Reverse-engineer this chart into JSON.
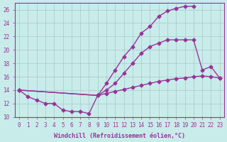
{
  "title": "",
  "xlabel": "Windchill (Refroidissement éolien,°C)",
  "ylabel": "",
  "bg_color": "#c8ecea",
  "line_color": "#993399",
  "grid_color": "#a8c8c8",
  "xlim": [
    -0.5,
    23.5
  ],
  "ylim": [
    10,
    27
  ],
  "yticks": [
    10,
    12,
    14,
    16,
    18,
    20,
    22,
    24,
    26
  ],
  "xticks": [
    0,
    1,
    2,
    3,
    4,
    5,
    6,
    7,
    8,
    9,
    10,
    11,
    12,
    13,
    14,
    15,
    16,
    17,
    18,
    19,
    20,
    21,
    22,
    23
  ],
  "line1_x": [
    0,
    1,
    2,
    3,
    4,
    5,
    6,
    7,
    8,
    9,
    10,
    11,
    12,
    13,
    14,
    15,
    16,
    17,
    18,
    19,
    20
  ],
  "line1_y": [
    14.0,
    13.0,
    12.5,
    12.0,
    12.0,
    11.0,
    10.8,
    10.8,
    10.5,
    13.2,
    15.0,
    17.0,
    19.0,
    20.5,
    22.5,
    23.5,
    25.0,
    25.8,
    26.2,
    26.5,
    26.5
  ],
  "line2_x": [
    0,
    9,
    10,
    11,
    12,
    13,
    14,
    15,
    16,
    17,
    18,
    19,
    20,
    21,
    22,
    23
  ],
  "line2_y": [
    14.0,
    13.2,
    14.0,
    15.0,
    16.5,
    18.0,
    19.5,
    20.5,
    21.0,
    21.5,
    21.5,
    21.5,
    21.5,
    17.0,
    17.5,
    15.8
  ],
  "line3_x": [
    0,
    9,
    10,
    11,
    12,
    13,
    14,
    15,
    16,
    17,
    18,
    19,
    20,
    21,
    22,
    23
  ],
  "line3_y": [
    14.0,
    13.2,
    13.5,
    13.8,
    14.1,
    14.4,
    14.7,
    15.0,
    15.3,
    15.5,
    15.7,
    15.8,
    16.0,
    16.1,
    16.0,
    15.8
  ],
  "marker": "D",
  "markersize": 2.5,
  "linewidth": 1.0,
  "tick_fontsize": 5.5,
  "label_fontsize": 6.0
}
